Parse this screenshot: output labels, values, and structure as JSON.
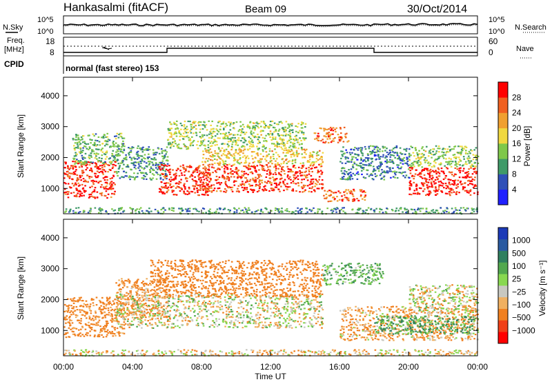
{
  "header": {
    "station": "Hankasalmi (fitACF)",
    "beam": "Beam 09",
    "date": "30/Oct/2014"
  },
  "noise_panel": {
    "left_label": "N.Sky",
    "right_label": "N.Search",
    "left_ticks": [
      "10^5",
      "10^0"
    ],
    "right_ticks": [
      "10^5",
      "10^0"
    ]
  },
  "freq_panel": {
    "left_label_line1": "Freq.",
    "left_label_line2": "[MHz]",
    "right_label": "Nave",
    "left_ticks": [
      "18",
      "8"
    ],
    "right_ticks": [
      "60",
      "0"
    ]
  },
  "cpid": {
    "label": "CPID",
    "text": "normal (fast stereo) 153"
  },
  "x_axis": {
    "ticks": [
      "00:00",
      "04:00",
      "08:00",
      "12:00",
      "16:00",
      "20:00",
      "00:00"
    ],
    "label": "Time UT"
  },
  "power_panel": {
    "ylabel": "Slant Range [km]",
    "yticks": [
      "4000",
      "3000",
      "2000",
      "1000"
    ],
    "colorbar_label": "Power [dB]",
    "colorbar_ticks": [
      "28",
      "24",
      "20",
      "16",
      "12",
      "8",
      "4"
    ],
    "colors": [
      "#2020ff",
      "#2f50b8",
      "#3f9a68",
      "#7fc84a",
      "#f0d840",
      "#f0a030",
      "#f06020",
      "#ff0000"
    ]
  },
  "velocity_panel": {
    "ylabel": "Slant Range [km]",
    "yticks": [
      "4000",
      "3000",
      "2000",
      "1000"
    ],
    "colorbar_label": "Velocity [m s⁻¹]",
    "colorbar_ticks": [
      "1000",
      "500",
      "100",
      "25",
      "−25",
      "−100",
      "−500",
      "−1000"
    ],
    "colors": [
      "#1c3ab8",
      "#2a5aa0",
      "#2f7f5f",
      "#52a84e",
      "#88d850",
      "#c8c8c0",
      "#f0b060",
      "#f08020",
      "#f04018",
      "#ff0000"
    ]
  },
  "chart_data": {
    "type": "heatmap",
    "title": "Hankasalmi (fitACF) Beam 09 30/Oct/2014",
    "xlabel": "Time UT",
    "ylabel": "Slant Range [km]",
    "xlim_hours": [
      0,
      24
    ],
    "ylim_km": [
      180,
      4600
    ],
    "power_scale_db": [
      0,
      30
    ],
    "velocity_scale_ms": [
      -1000,
      1000
    ],
    "scatter_regions_power": [
      {
        "t0": 0.0,
        "t1": 3.0,
        "r0": 700,
        "r1": 1900,
        "db": 27
      },
      {
        "t0": 0.5,
        "t1": 3.5,
        "r0": 1800,
        "r1": 2800,
        "db": 12
      },
      {
        "t0": 3.0,
        "t1": 6.0,
        "r0": 1300,
        "r1": 2400,
        "db": 10
      },
      {
        "t0": 5.5,
        "t1": 8.5,
        "r0": 800,
        "r1": 1800,
        "db": 27
      },
      {
        "t0": 8.0,
        "t1": 15.0,
        "r0": 900,
        "r1": 1800,
        "db": 26
      },
      {
        "t0": 8.0,
        "t1": 15.0,
        "r0": 1800,
        "r1": 2300,
        "db": 18
      },
      {
        "t0": 6.0,
        "t1": 14.0,
        "r0": 2300,
        "r1": 3200,
        "db": 14
      },
      {
        "t0": 14.5,
        "t1": 16.5,
        "r0": 2500,
        "r1": 3000,
        "db": 24
      },
      {
        "t0": 15.0,
        "t1": 17.5,
        "r0": 600,
        "r1": 1000,
        "db": 24
      },
      {
        "t0": 16.0,
        "t1": 20.0,
        "r0": 1300,
        "r1": 2400,
        "db": 8
      },
      {
        "t0": 20.0,
        "t1": 24.0,
        "r0": 800,
        "r1": 1700,
        "db": 28
      },
      {
        "t0": 20.0,
        "t1": 24.0,
        "r0": 1700,
        "r1": 2400,
        "db": 14
      },
      {
        "t0": 0.0,
        "t1": 24.0,
        "r0": 200,
        "r1": 400,
        "db": 10
      }
    ],
    "scatter_regions_velocity": [
      {
        "t0": 0.0,
        "t1": 3.5,
        "r0": 800,
        "r1": 2100,
        "v": -200
      },
      {
        "t0": 3.0,
        "t1": 6.0,
        "r0": 1400,
        "r1": 2700,
        "v": -150
      },
      {
        "t0": 3.0,
        "t1": 15.0,
        "r0": 1100,
        "r1": 2200,
        "v": 0
      },
      {
        "t0": 5.0,
        "t1": 15.0,
        "r0": 2100,
        "r1": 3300,
        "v": -300
      },
      {
        "t0": 15.0,
        "t1": 18.5,
        "r0": 2500,
        "r1": 3200,
        "v": 150
      },
      {
        "t0": 16.0,
        "t1": 24.0,
        "r0": 700,
        "r1": 1800,
        "v": -100
      },
      {
        "t0": 18.0,
        "t1": 24.0,
        "r0": 900,
        "r1": 1500,
        "v": 200
      },
      {
        "t0": 20.0,
        "t1": 24.0,
        "r0": 1600,
        "r1": 2500,
        "v": 0
      },
      {
        "t0": 0.0,
        "t1": 24.0,
        "r0": 200,
        "r1": 400,
        "v": -50
      }
    ]
  }
}
